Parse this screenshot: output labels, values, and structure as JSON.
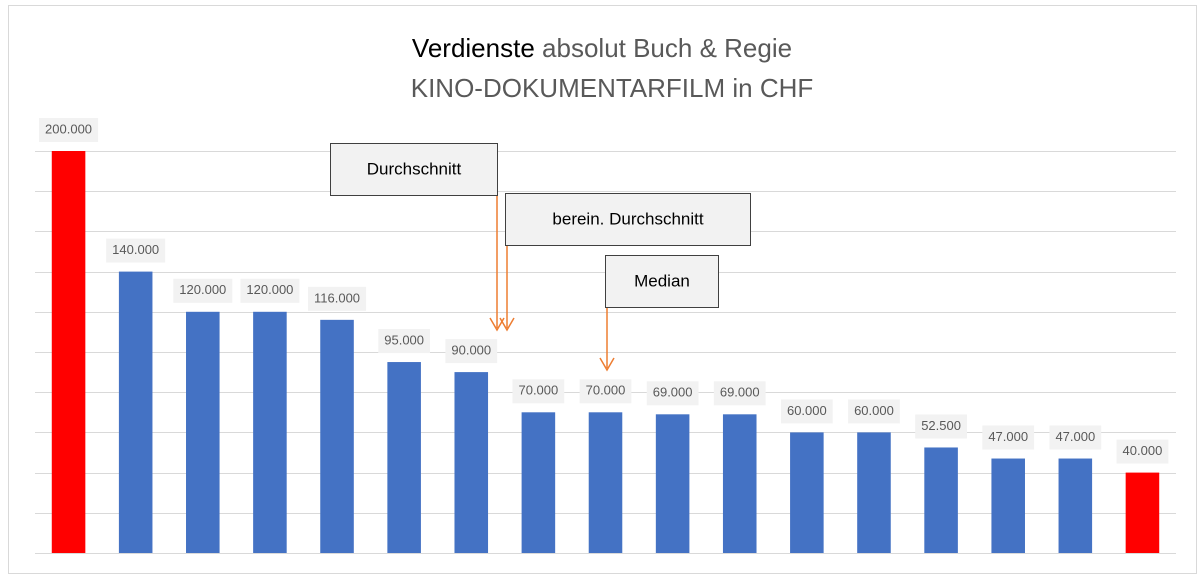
{
  "chart_data": {
    "type": "bar",
    "title": {
      "main": "Verdienste",
      "rest": "absolut Buch & Regie",
      "line2": "KINO-DOKUMENTARFILM in CHF"
    },
    "categories": [
      null,
      null,
      null,
      null,
      null,
      null,
      null,
      null,
      null,
      null,
      null,
      null,
      null,
      null,
      null,
      null,
      null
    ],
    "values": [
      200000,
      140000,
      120000,
      120000,
      116000,
      95000,
      90000,
      70000,
      70000,
      69000,
      69000,
      60000,
      60000,
      52500,
      47000,
      47000,
      40000
    ],
    "value_labels": [
      "200.000",
      "140.000",
      "120.000",
      "120.000",
      "116.000",
      "95.000",
      "90.000",
      "70.000",
      "70.000",
      "69.000",
      "69.000",
      "60.000",
      "60.000",
      "52.500",
      "47.000",
      "47.000",
      "40.000"
    ],
    "colors": [
      "#ff0000",
      "#4472c4",
      "#4472c4",
      "#4472c4",
      "#4472c4",
      "#4472c4",
      "#4472c4",
      "#4472c4",
      "#4472c4",
      "#4472c4",
      "#4472c4",
      "#4472c4",
      "#4472c4",
      "#4472c4",
      "#4472c4",
      "#4472c4",
      "#ff0000"
    ],
    "ylim": [
      0,
      200000
    ],
    "yticks": [
      0,
      20000,
      40000,
      60000,
      80000,
      100000,
      120000,
      140000,
      160000,
      180000,
      200000
    ],
    "grid": true,
    "annotations": [
      "Durchschnitt",
      "berein. Durchschnitt",
      "Median"
    ]
  }
}
